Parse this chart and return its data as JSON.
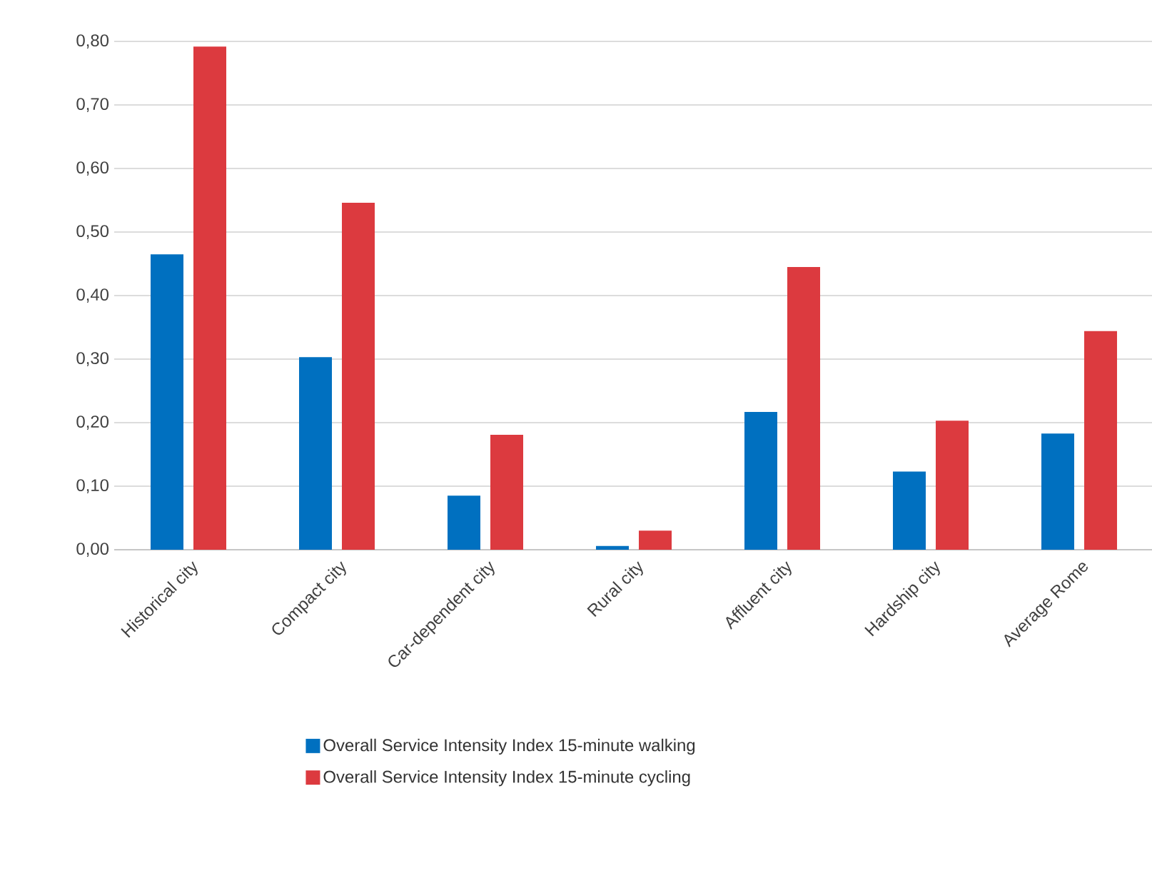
{
  "chart_data": {
    "type": "bar",
    "categories": [
      "Historical city",
      "Compact city",
      "Car-dependent city",
      "Rural city",
      "Affluent city",
      "Hardship city",
      "Average Rome"
    ],
    "series": [
      {
        "name": "Overall Service Intensity Index 15-minute walking",
        "color": "#0070c0",
        "values": [
          0.465,
          0.303,
          0.085,
          0.006,
          0.217,
          0.123,
          0.183
        ]
      },
      {
        "name": "Overall Service Intensity Index 15-minute cycling",
        "color": "#dc3a3f",
        "values": [
          0.792,
          0.546,
          0.181,
          0.03,
          0.445,
          0.203,
          0.344
        ]
      }
    ],
    "ylim": [
      0,
      0.8
    ],
    "yticks": [
      {
        "value": 0,
        "label": "0,00"
      },
      {
        "value": 0.1,
        "label": "0,10"
      },
      {
        "value": 0.2,
        "label": "0,20"
      },
      {
        "value": 0.3,
        "label": "0,30"
      },
      {
        "value": 0.4,
        "label": "0,40"
      },
      {
        "value": 0.5,
        "label": "0,50"
      },
      {
        "value": 0.6,
        "label": "0,60"
      },
      {
        "value": 0.7,
        "label": "0,70"
      },
      {
        "value": 0.8,
        "label": "0,80"
      }
    ],
    "grid": "y",
    "legend": "bottom"
  }
}
